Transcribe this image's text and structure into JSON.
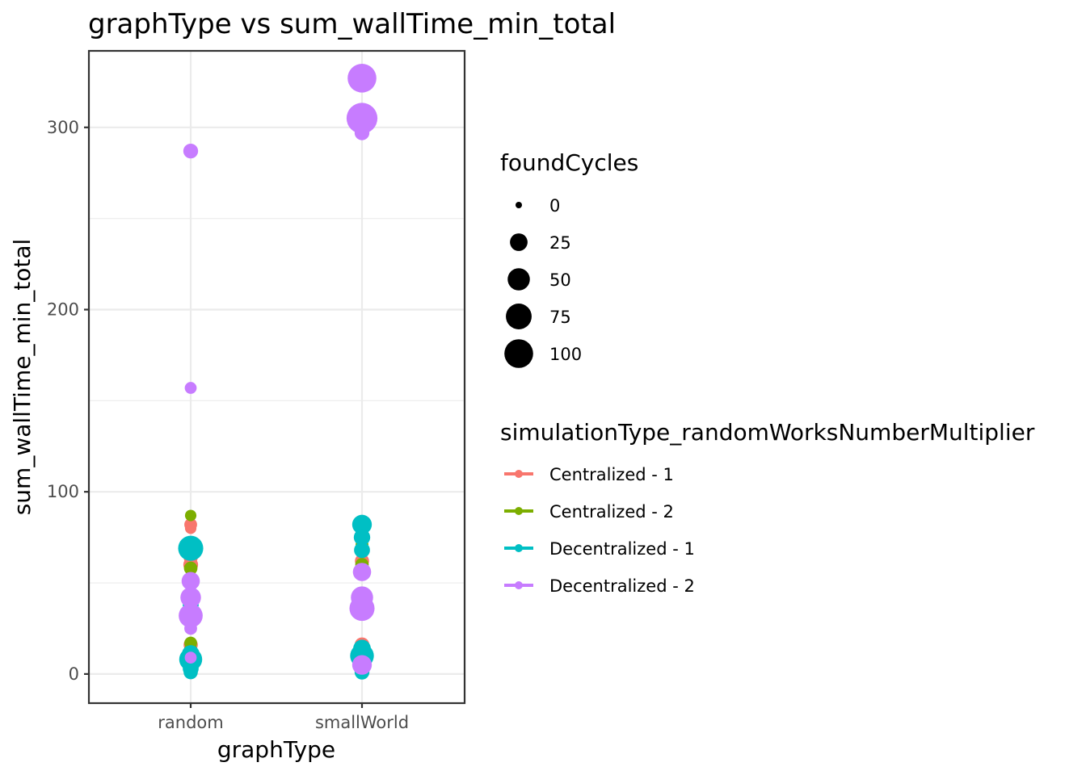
{
  "chart_data": {
    "type": "scatter",
    "title": "graphType  vs  sum_wallTime_min_total",
    "xlabel": "graphType",
    "ylabel": "sum_wallTime_min_total",
    "categories": [
      "random",
      "smallWorld"
    ],
    "ylim": [
      -16,
      342
    ],
    "y_ticks": [
      0,
      100,
      200,
      300
    ],
    "y_tick_labels": [
      "0",
      "100",
      "200",
      "300"
    ],
    "grid": true,
    "size_legend": {
      "title": "foundCycles",
      "values": [
        0,
        25,
        50,
        75,
        100
      ],
      "labels": [
        "0",
        "25",
        "50",
        "75",
        "100"
      ]
    },
    "color_legend": {
      "title": "simulationType_randomWorksNumberMultiplier",
      "placement": "right"
    },
    "series": [
      {
        "name": "Centralized - 1",
        "color": "#F8766D",
        "points": [
          {
            "x": "random",
            "y": 82,
            "size": 8
          },
          {
            "x": "random",
            "y": 80,
            "size": 5
          },
          {
            "x": "random",
            "y": 64,
            "size": 12
          },
          {
            "x": "random",
            "y": 60,
            "size": 14
          },
          {
            "x": "random",
            "y": 16,
            "size": 12
          },
          {
            "x": "random",
            "y": 9,
            "size": 6
          },
          {
            "x": "smallWorld",
            "y": 62,
            "size": 12
          },
          {
            "x": "smallWorld",
            "y": 58,
            "size": 8
          },
          {
            "x": "smallWorld",
            "y": 16,
            "size": 14
          },
          {
            "x": "smallWorld",
            "y": 12,
            "size": 10
          }
        ]
      },
      {
        "name": "Centralized - 2",
        "color": "#7CAE00",
        "points": [
          {
            "x": "random",
            "y": 87,
            "size": 5
          },
          {
            "x": "random",
            "y": 70,
            "size": 8
          },
          {
            "x": "random",
            "y": 58,
            "size": 10
          },
          {
            "x": "random",
            "y": 17,
            "size": 8
          },
          {
            "x": "random",
            "y": 13,
            "size": 10
          },
          {
            "x": "random",
            "y": 5,
            "size": 8
          },
          {
            "x": "smallWorld",
            "y": 71,
            "size": 8
          },
          {
            "x": "smallWorld",
            "y": 60,
            "size": 10
          },
          {
            "x": "smallWorld",
            "y": 11,
            "size": 8
          }
        ]
      },
      {
        "name": "Decentralized - 1",
        "color": "#00BFC4",
        "points": [
          {
            "x": "random",
            "y": 69,
            "size": 70
          },
          {
            "x": "random",
            "y": 38,
            "size": 18
          },
          {
            "x": "random",
            "y": 11,
            "size": 25
          },
          {
            "x": "random",
            "y": 8,
            "size": 55
          },
          {
            "x": "random",
            "y": 3,
            "size": 18
          },
          {
            "x": "random",
            "y": 1,
            "size": 12
          },
          {
            "x": "smallWorld",
            "y": 82,
            "size": 35
          },
          {
            "x": "smallWorld",
            "y": 75,
            "size": 20
          },
          {
            "x": "smallWorld",
            "y": 68,
            "size": 18
          },
          {
            "x": "smallWorld",
            "y": 14,
            "size": 25
          },
          {
            "x": "smallWorld",
            "y": 10,
            "size": 60
          },
          {
            "x": "smallWorld",
            "y": 5,
            "size": 22
          },
          {
            "x": "smallWorld",
            "y": 1,
            "size": 14
          }
        ]
      },
      {
        "name": "Decentralized - 2",
        "color": "#C77CFF",
        "points": [
          {
            "x": "random",
            "y": 287,
            "size": 14
          },
          {
            "x": "random",
            "y": 157,
            "size": 6
          },
          {
            "x": "random",
            "y": 51,
            "size": 28
          },
          {
            "x": "random",
            "y": 42,
            "size": 40
          },
          {
            "x": "random",
            "y": 32,
            "size": 62
          },
          {
            "x": "random",
            "y": 25,
            "size": 8
          },
          {
            "x": "random",
            "y": 9,
            "size": 6
          },
          {
            "x": "smallWorld",
            "y": 327,
            "size": 100
          },
          {
            "x": "smallWorld",
            "y": 305,
            "size": 120
          },
          {
            "x": "smallWorld",
            "y": 297,
            "size": 14
          },
          {
            "x": "smallWorld",
            "y": 56,
            "size": 28
          },
          {
            "x": "smallWorld",
            "y": 42,
            "size": 50
          },
          {
            "x": "smallWorld",
            "y": 36,
            "size": 70
          },
          {
            "x": "smallWorld",
            "y": 5,
            "size": 35
          }
        ]
      }
    ]
  }
}
